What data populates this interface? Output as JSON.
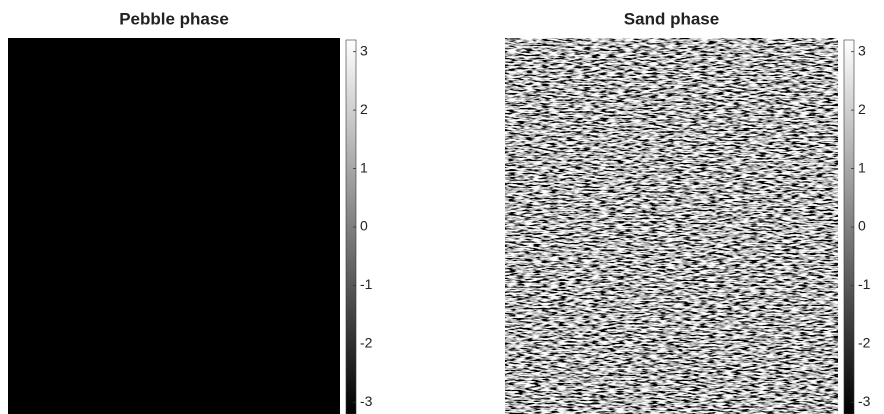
{
  "chart_data": [
    {
      "type": "heatmap",
      "title": "Pebble phase",
      "colormap": "gray",
      "clim": [
        -3.2,
        3.2
      ],
      "cticks": [
        3,
        2,
        1,
        0,
        -1,
        -2,
        -3
      ]
    },
    {
      "type": "heatmap",
      "title": "Sand phase",
      "colormap": "gray",
      "clim": [
        -3.2,
        3.2
      ],
      "cticks": [
        3,
        2,
        1,
        0,
        -1,
        -2,
        -3
      ]
    }
  ]
}
